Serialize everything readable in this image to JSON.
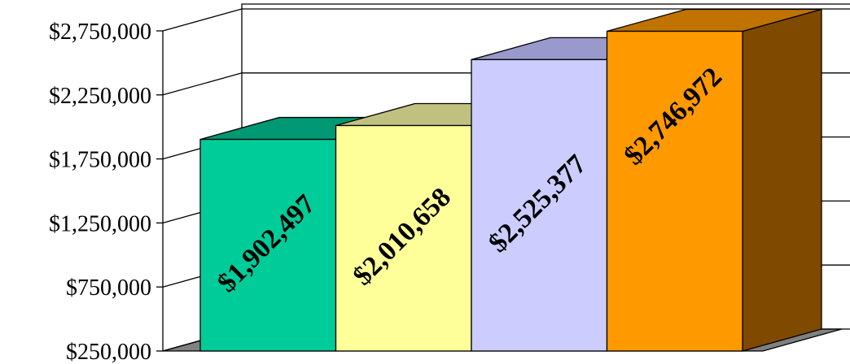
{
  "chart_data": {
    "type": "bar",
    "three_d": true,
    "categories": [
      "",
      "",
      "",
      ""
    ],
    "values": [
      1902497,
      2010658,
      2525377,
      2746972
    ],
    "data_labels": [
      "$1,902,497",
      "$2,010,658",
      "$2,525,377",
      "$2,746,972"
    ],
    "y_ticks": [
      250000,
      750000,
      1250000,
      1750000,
      2250000,
      2750000
    ],
    "y_tick_labels": [
      "$250,000",
      "$750,000",
      "$1,250,000",
      "$1,750,000",
      "$2,250,000",
      "$2,750,000"
    ],
    "ylim": [
      250000,
      2750000
    ],
    "grid": true,
    "legend": false,
    "title": "",
    "xlabel": "",
    "ylabel": "",
    "colors": {
      "bars": [
        "#00CC99",
        "#FFFF99",
        "#CCCCFF",
        "#FF9900"
      ],
      "bar_tops": [
        "#009973",
        "#C0C080",
        "#9999CC",
        "#C07300"
      ],
      "side": "#7F4A00",
      "floor": "#808080"
    }
  }
}
